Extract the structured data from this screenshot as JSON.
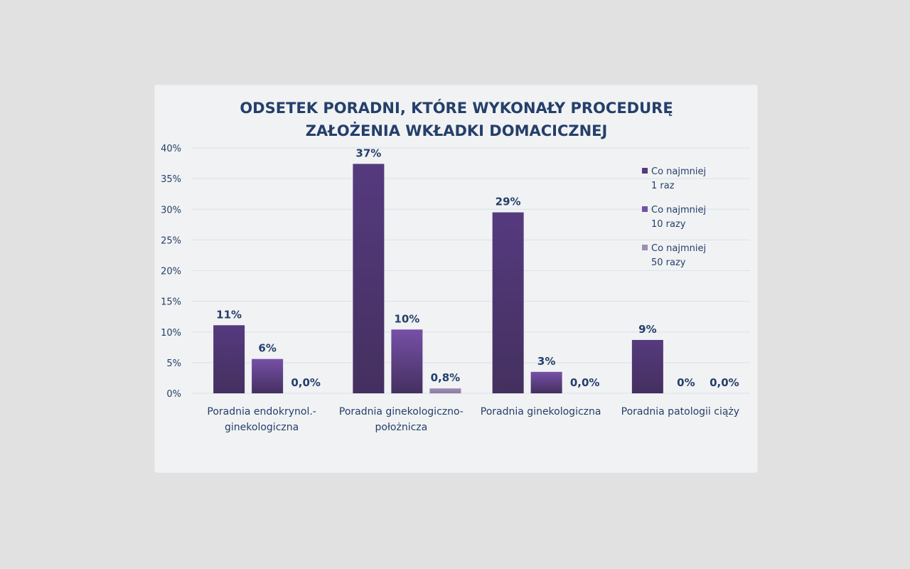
{
  "chart_data": {
    "type": "bar",
    "title_lines": [
      "ODSETEK PORADNI, KTÓRE WYKONAŁY PROCEDURĘ",
      "ZAŁOŻENIA WKŁADKI DOMACICZNEJ"
    ],
    "categories": [
      [
        "Poradnia endokrynol.-",
        "ginekologiczna"
      ],
      [
        "Poradnia ginekologiczno-",
        "położnicza"
      ],
      [
        "Poradnia ginekologiczna"
      ],
      [
        "Poradnia patologii ciąży"
      ]
    ],
    "series": [
      {
        "name": "Co najmniej 1 raz",
        "legend_lines": [
          "Co najmniej",
          "1 raz"
        ],
        "values": [
          11.1,
          37.4,
          29.5,
          8.7
        ],
        "labels": [
          "11%",
          "37%",
          "29%",
          "9%"
        ],
        "color": "#553a7e"
      },
      {
        "name": "Co najmniej 10 razy",
        "legend_lines": [
          "Co najmniej",
          "10 razy"
        ],
        "values": [
          5.6,
          10.4,
          3.5,
          0
        ],
        "labels": [
          "6%",
          "10%",
          "3%",
          "0%"
        ],
        "color": "#7650a7"
      },
      {
        "name": "Co najmniej 50 razy",
        "legend_lines": [
          "Co najmniej",
          "50 razy"
        ],
        "values": [
          0,
          0.8,
          0,
          0
        ],
        "labels": [
          "0,0%",
          "0,8%",
          "0,0%",
          "0,0%"
        ],
        "color": "#9f8db4"
      }
    ],
    "yticks": [
      "0%",
      "5%",
      "10%",
      "15%",
      "20%",
      "25%",
      "30%",
      "35%",
      "40%"
    ],
    "ylim": [
      0,
      40
    ],
    "grid": true,
    "legend_position": "right"
  }
}
